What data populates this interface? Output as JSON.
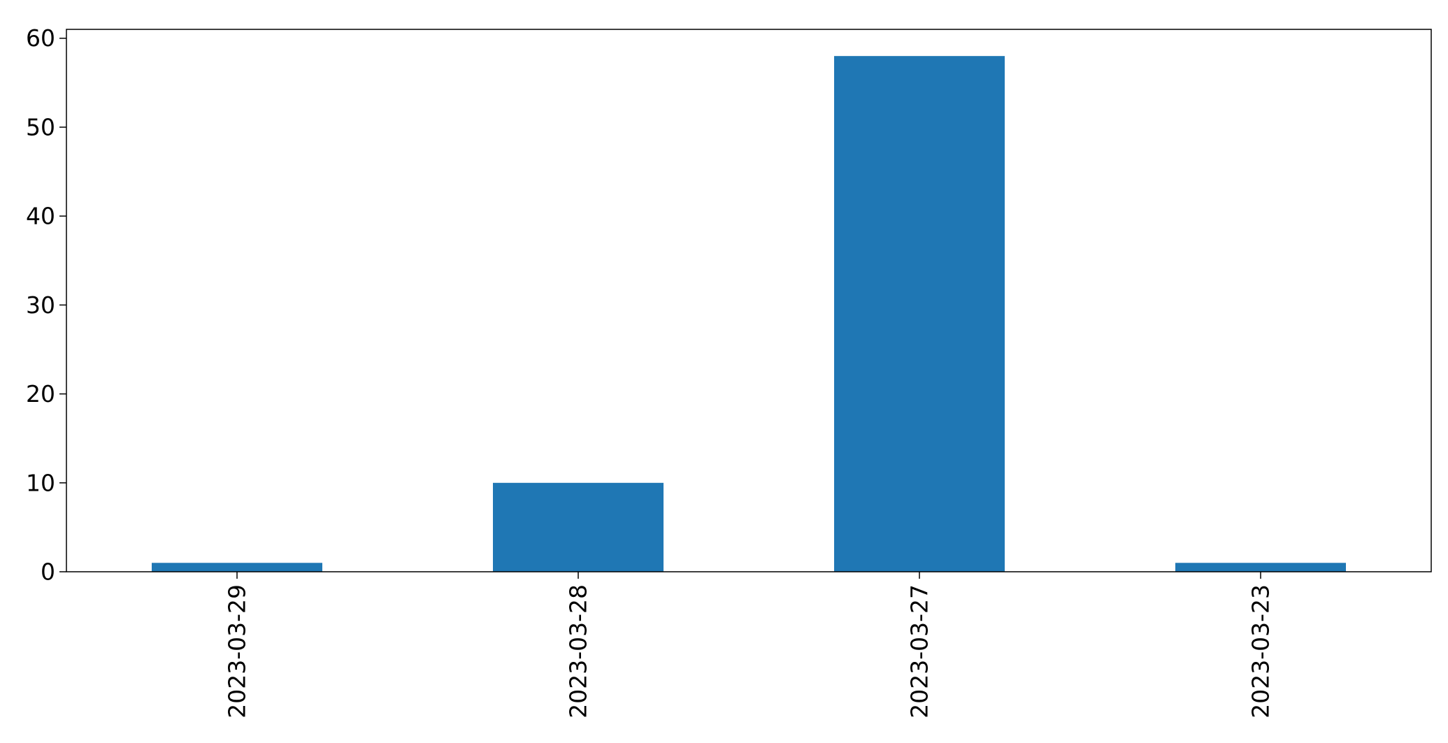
{
  "chart_data": {
    "type": "bar",
    "categories": [
      "2023-03-29",
      "2023-03-28",
      "2023-03-27",
      "2023-03-23"
    ],
    "values": [
      1,
      10,
      58,
      1
    ],
    "title": "",
    "xlabel": "",
    "ylabel": "",
    "ylim": [
      0,
      61
    ],
    "yticks": [
      0,
      10,
      20,
      30,
      40,
      50,
      60
    ],
    "grid": false,
    "legend": "none",
    "colors": {
      "bar": "#1f77b4",
      "axis": "#000000",
      "background": "#ffffff"
    }
  }
}
